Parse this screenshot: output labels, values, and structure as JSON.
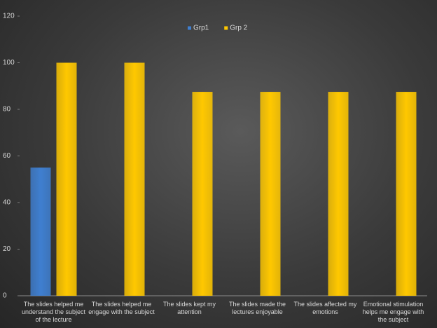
{
  "chart_data": {
    "type": "bar",
    "categories": [
      "The slides helped me understand the subject of the lecture",
      "The slides helped me engage with the subject",
      "The slides kept my attention",
      "The slides made the lectures enjoyable",
      "The slides affected my emotions",
      "Emotional stimulation helps me engage with the subject"
    ],
    "series": [
      {
        "name": "Grp1",
        "color": "#3f7fd0",
        "values": [
          55,
          0,
          0,
          0,
          0,
          0
        ]
      },
      {
        "name": "Grp 2",
        "color": "#ffc800",
        "values": [
          100,
          100,
          87.5,
          87.5,
          87.5,
          87.5
        ]
      }
    ],
    "ylim": [
      0,
      120
    ],
    "yticks": [
      0,
      20,
      40,
      60,
      80,
      100,
      120
    ],
    "grid": false,
    "legend": "top"
  }
}
